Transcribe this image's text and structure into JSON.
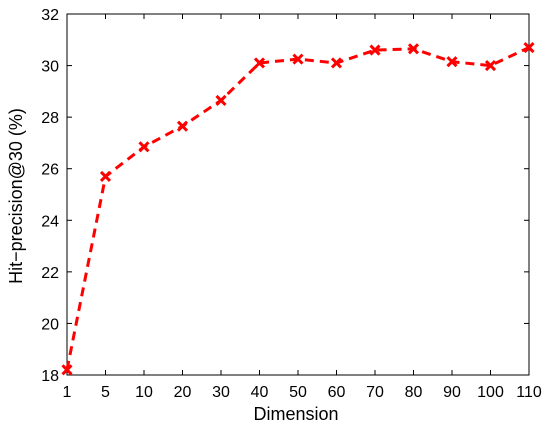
{
  "chart_data": {
    "type": "line",
    "title": "",
    "xlabel": "Dimension",
    "ylabel": "Hit−precision@30 (%)",
    "x": [
      1,
      5,
      10,
      20,
      30,
      40,
      50,
      60,
      70,
      80,
      90,
      100,
      110
    ],
    "xticks": [
      "1",
      "5",
      "10",
      "20",
      "30",
      "40",
      "50",
      "60",
      "70",
      "80",
      "90",
      "100",
      "110"
    ],
    "xtick_position": "categorical",
    "ylim": [
      18,
      32
    ],
    "yticks": [
      18,
      20,
      22,
      24,
      26,
      28,
      30,
      32
    ],
    "grid": false,
    "series": [
      {
        "values": [
          18.2,
          25.7,
          26.85,
          27.65,
          28.65,
          30.1,
          30.25,
          30.1,
          30.6,
          30.65,
          30.15,
          30.0,
          30.7
        ],
        "color": "#ff0000",
        "line_style": "dashed",
        "marker": "x"
      }
    ]
  }
}
